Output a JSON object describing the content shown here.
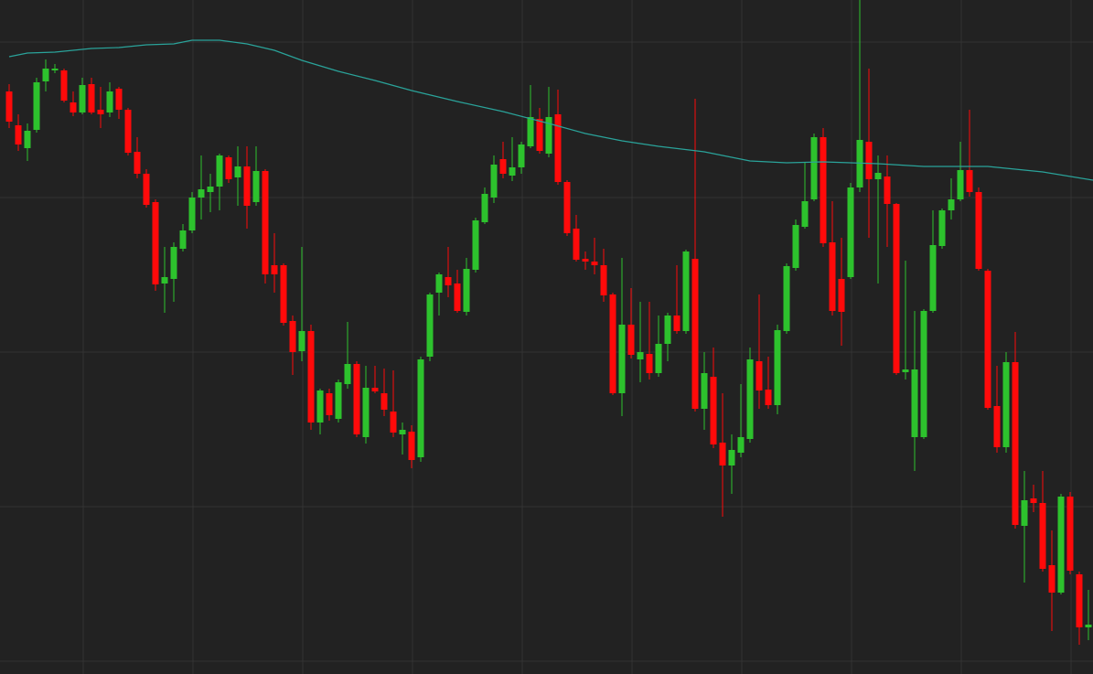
{
  "chart_data": {
    "type": "candlestick",
    "background": "#222222",
    "grid_color": "#333333",
    "up_color": "#2dc22d",
    "down_color": "#ff0a0a",
    "xlim": [
      -1,
      118.5
    ],
    "ylim": [
      0,
      737
    ],
    "xgrid": [
      8.1,
      20.1,
      32.1,
      44.1,
      56.1,
      68.1,
      80.1,
      92.1,
      104.1,
      116.1
    ],
    "ygrid": [
      691,
      521,
      352,
      183,
      14
    ],
    "x": [
      0,
      1,
      2,
      3,
      4,
      5,
      6,
      7,
      8,
      9,
      10,
      11,
      12,
      13,
      14,
      15,
      16,
      17,
      18,
      19,
      20,
      21,
      22,
      23,
      24,
      25,
      26,
      27,
      28,
      29,
      30,
      31,
      32,
      33,
      34,
      35,
      36,
      37,
      38,
      39,
      40,
      41,
      42,
      43,
      44,
      45,
      46,
      47,
      48,
      49,
      50,
      51,
      52,
      53,
      54,
      55,
      56,
      57,
      58,
      59,
      60,
      61,
      62,
      63,
      64,
      65,
      66,
      67,
      68,
      69,
      70,
      71,
      72,
      73,
      74,
      75,
      76,
      77,
      78,
      79,
      80,
      81,
      82,
      83,
      84,
      85,
      86,
      87,
      88,
      89,
      90,
      91,
      92,
      93,
      94,
      95,
      96,
      97,
      98,
      99,
      100,
      101,
      102,
      103,
      104,
      105,
      106,
      107,
      108,
      109,
      110,
      111,
      112,
      113,
      114,
      115,
      116,
      117,
      118
    ],
    "open": [
      637,
      600,
      575,
      595,
      648,
      660,
      660,
      625,
      614,
      645,
      617,
      614,
      640,
      617,
      571,
      547,
      516,
      427,
      432,
      465,
      485,
      521,
      527,
      533,
      565,
      543,
      555,
      516,
      550,
      447,
      447,
      386,
      353,
      375,
      275,
      307,
      279,
      317,
      339,
      259,
      313,
      307,
      287,
      262,
      265,
      237,
      347,
      417,
      434,
      427,
      396,
      442,
      494,
      521,
      563,
      545,
      554,
      577,
      607,
      569,
      612,
      538,
      487,
      454,
      451,
      447,
      415,
      307,
      382,
      344,
      350,
      329,
      361,
      392,
      375,
      454,
      290,
      325,
      253,
      228,
      242,
      257,
      342,
      311,
      294,
      375,
      444,
      489,
      519,
      587,
      472,
      432,
      434,
      532,
      582,
      541,
      544,
      514,
      330,
      259,
      259,
      397,
      468,
      507,
      519,
      551,
      527,
      441,
      293,
      248,
      341,
      162,
      192,
      187,
      119,
      89,
      194,
      109,
      51
    ],
    "high": [
      645,
      612,
      602,
      652,
      672,
      667,
      662,
      637,
      652,
      652,
      642,
      647,
      642,
      619,
      587,
      552,
      519,
      467,
      472,
      492,
      527,
      567,
      547,
      569,
      567,
      577,
      577,
      577,
      552,
      482,
      449,
      392,
      467,
      382,
      312,
      312,
      322,
      385,
      342,
      337,
      337,
      334,
      332,
      275,
      272,
      347,
      417,
      439,
      467,
      442,
      455,
      499,
      532,
      567,
      582,
      587,
      582,
      644,
      619,
      642,
      639,
      540,
      502,
      462,
      477,
      465,
      417,
      455,
      422,
      407,
      407,
      392,
      395,
      447,
      464,
      629,
      352,
      357,
      307,
      262,
      317,
      357,
      415,
      347,
      382,
      449,
      497,
      559,
      591,
      597,
      517,
      477,
      537,
      737,
      662,
      567,
      567,
      515,
      452,
      397,
      399,
      507,
      509,
      542,
      582,
      617,
      532,
      443,
      337,
      352,
      374,
      222,
      207,
      222,
      157,
      197,
      199,
      112,
      92
    ],
    "low": [
      597,
      572,
      561,
      592,
      637,
      657,
      625,
      610,
      612,
      612,
      597,
      609,
      607,
      567,
      542,
      510,
      419,
      395,
      407,
      462,
      482,
      497,
      505,
      507,
      537,
      512,
      487,
      512,
      427,
      417,
      381,
      327,
      342,
      267,
      262,
      277,
      275,
      312,
      259,
      252,
      307,
      282,
      259,
      240,
      225,
      232,
      342,
      392,
      412,
      395,
      392,
      439,
      492,
      515,
      542,
      539,
      547,
      575,
      569,
      565,
      535,
      479,
      451,
      442,
      437,
      407,
      305,
      282,
      345,
      319,
      322,
      325,
      342,
      372,
      372,
      287,
      267,
      247,
      172,
      197,
      237,
      253,
      290,
      290,
      284,
      372,
      441,
      487,
      517,
      467,
      392,
      359,
      432,
      527,
      477,
      427,
      467,
      327,
      322,
      222,
      257,
      395,
      465,
      497,
      517,
      522,
      441,
      289,
      242,
      242,
      159,
      100,
      177,
      112,
      47,
      87,
      109,
      32,
      37
    ],
    "close": [
      604,
      579,
      594,
      647,
      662,
      662,
      627,
      614,
      644,
      614,
      612,
      637,
      617,
      570,
      547,
      513,
      426,
      434,
      467,
      485,
      521,
      530,
      533,
      567,
      541,
      555,
      512,
      550,
      437,
      437,
      384,
      352,
      375,
      275,
      310,
      283,
      319,
      339,
      262,
      313,
      309,
      289,
      264,
      267,
      234,
      344,
      415,
      437,
      425,
      397,
      443,
      496,
      525,
      557,
      547,
      554,
      579,
      609,
      572,
      609,
      538,
      482,
      453,
      451,
      447,
      414,
      307,
      382,
      349,
      352,
      329,
      361,
      392,
      375,
      462,
      290,
      329,
      251,
      228,
      245,
      259,
      344,
      310,
      294,
      376,
      446,
      491,
      517,
      587,
      471,
      397,
      396,
      532,
      584,
      541,
      548,
      514,
      329,
      333,
      333,
      397,
      469,
      507,
      519,
      551,
      527,
      443,
      291,
      248,
      341,
      163,
      190,
      187,
      115,
      89,
      194,
      113,
      51,
      54
    ],
    "series": [
      {
        "color": "#2aa39a",
        "x": [
          0,
          2,
          5,
          9,
          12,
          15,
          18,
          20,
          23,
          26,
          29,
          32,
          36,
          40,
          44,
          49,
          54,
          59,
          63,
          67,
          71,
          76,
          81,
          85,
          89,
          95,
          100,
          107,
          113,
          118.5
        ],
        "values": [
          675,
          679,
          680,
          684,
          685,
          688,
          689,
          693,
          693,
          689,
          682,
          671,
          659,
          649,
          638,
          626,
          615,
          602,
          591,
          583,
          577,
          571,
          561,
          559,
          560,
          558,
          555,
          555,
          549,
          540
        ]
      }
    ]
  }
}
